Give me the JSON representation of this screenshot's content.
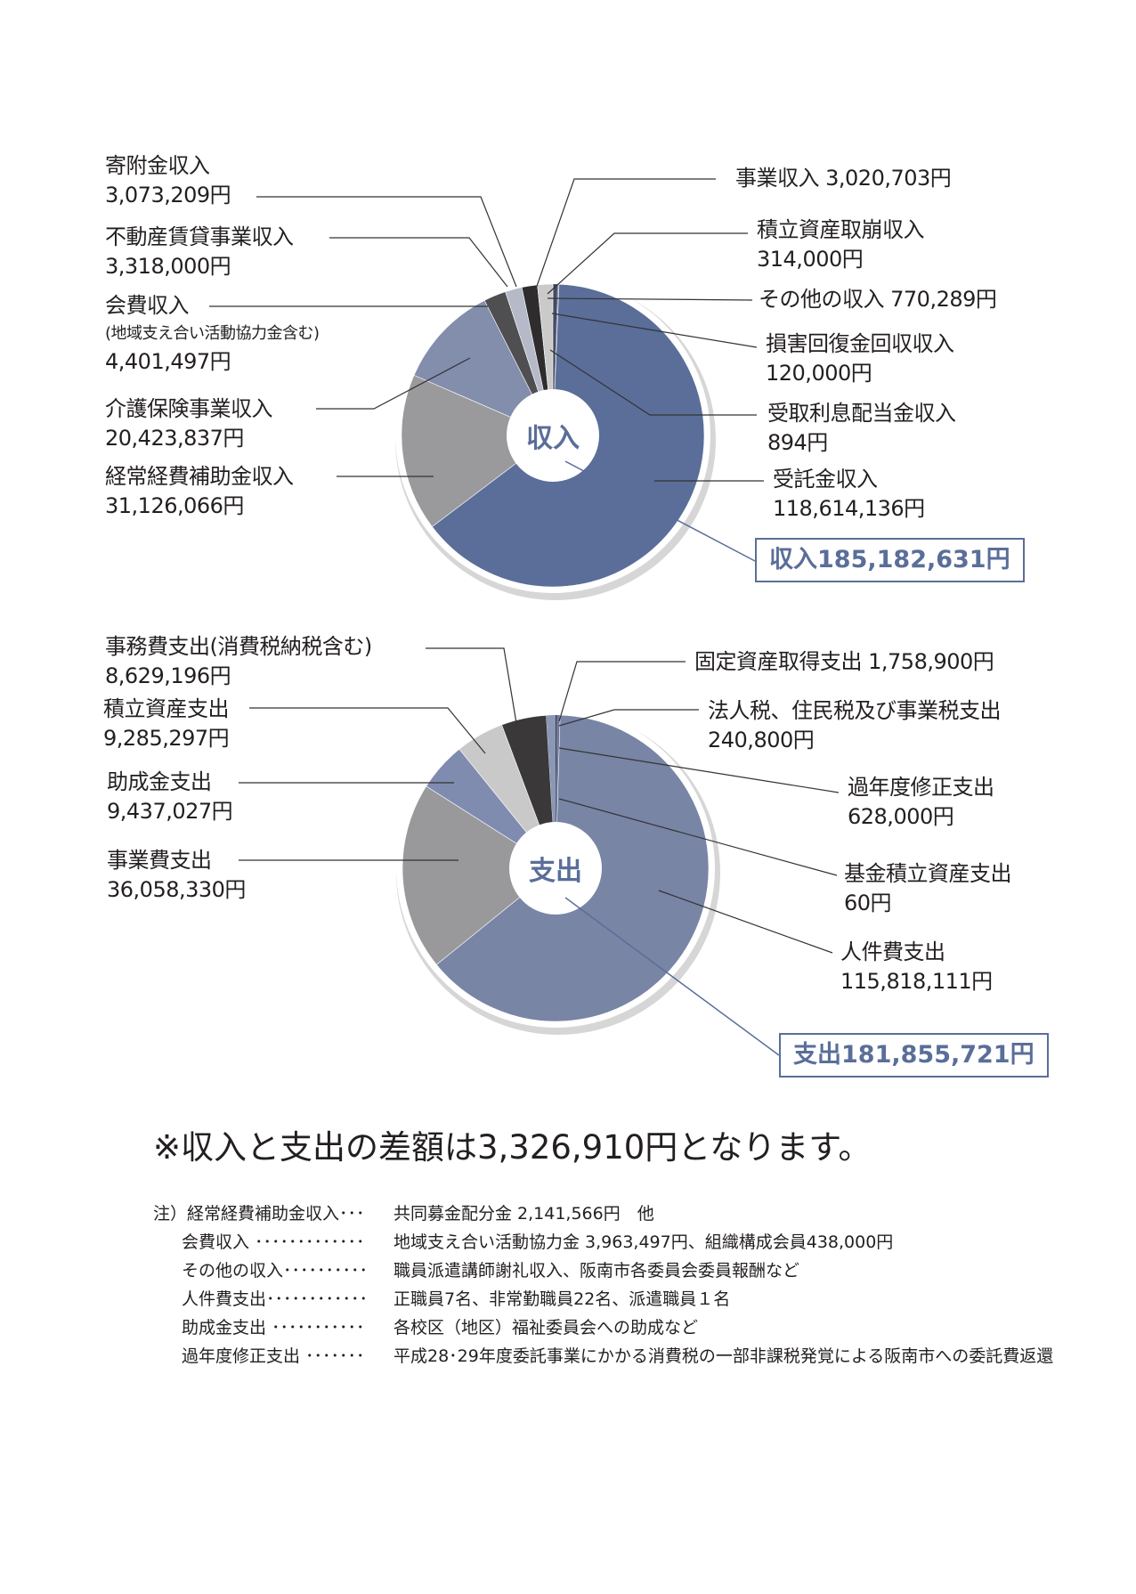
{
  "chart_data": [
    {
      "type": "pie",
      "title": "収入",
      "total_label": "収入185,182,631円",
      "slices": [
        {
          "label": "受取利息配当金収入",
          "value": 894,
          "value_label": "894円",
          "color": "#2f3447"
        },
        {
          "label": "損害回復金回収収入",
          "value": 120000,
          "value_label": "120,000円",
          "color": "#3a3f55"
        },
        {
          "label": "その他の収入",
          "value": 770289,
          "value_label": "770,289円",
          "color": "#454a60"
        },
        {
          "label": "積立資産取崩収入",
          "value": 314000,
          "value_label": "314,000円",
          "color": "#8b95b2"
        },
        {
          "label": "受託金収入",
          "value": 118614136,
          "value_label": "118,614,136円",
          "color": "#5a6e99"
        },
        {
          "label": "経常経費補助金収入",
          "value": 31126066,
          "value_label": "31,126,066円",
          "color": "#9a9a9c"
        },
        {
          "label": "介護保険事業収入",
          "value": 20423837,
          "value_label": "20,423,837円",
          "color": "#838ead"
        },
        {
          "label": "会費収入",
          "sub_label": "(地域支え合い活動協力金含む)",
          "value": 4401497,
          "value_label": "4,401,497円",
          "color": "#4f4f52"
        },
        {
          "label": "不動産賃貸事業収入",
          "value": 3318000,
          "value_label": "3,318,000円",
          "color": "#b5b9c8"
        },
        {
          "label": "寄附金収入",
          "value": 3073209,
          "value_label": "3,073,209円",
          "color": "#2e2c2d"
        },
        {
          "label": "事業収入",
          "value": 3020703,
          "value_label": "3,020,703円",
          "color": "#cacaca"
        }
      ]
    },
    {
      "type": "pie",
      "title": "支出",
      "total_label": "支出181,855,721円",
      "slices": [
        {
          "label": "法人税、住民税及び事業税支出",
          "value": 240800,
          "value_label": "240,800円",
          "color": "#3a3d4c"
        },
        {
          "label": "過年度修正支出",
          "value": 628000,
          "value_label": "628,000円",
          "color": "#6c789a"
        },
        {
          "label": "基金積立資産支出",
          "value": 60,
          "value_label": "60円",
          "color": "#333"
        },
        {
          "label": "人件費支出",
          "value": 115818111,
          "value_label": "115,818,111円",
          "color": "#7885a5"
        },
        {
          "label": "事業費支出",
          "value": 36058330,
          "value_label": "36,058,330円",
          "color": "#99999b"
        },
        {
          "label": "助成金支出",
          "value": 9437027,
          "value_label": "9,437,027円",
          "color": "#7f8cb0"
        },
        {
          "label": "積立資産支出",
          "value": 9285297,
          "value_label": "9,285,297円",
          "color": "#c9c9c9"
        },
        {
          "label": "事務費支出(消費税納税含む)",
          "value": 8629196,
          "value_label": "8,629,196円",
          "color": "#3a3838"
        },
        {
          "label": "固定資産取得支出",
          "value": 1758900,
          "value_label": "1,758,900円",
          "color": "#8b97b6"
        }
      ]
    }
  ],
  "difference_text": "※収入と支出の差額は3,326,910円となります。",
  "notes": [
    {
      "key": "注）経常経費補助金収入･･･",
      "value": "共同募金配分金 2,141,566円　他"
    },
    {
      "key": "会費収入 ･････････････",
      "value": "地域支え合い活動協力金 3,963,497円、組織構成会員438,000円"
    },
    {
      "key": "その他の収入･･････････",
      "value": "職員派遣講師謝礼収入、阪南市各委員会委員報酬など"
    },
    {
      "key": "人件費支出････････････",
      "value": "正職員7名、非常勤職員22名、派遣職員１名"
    },
    {
      "key": "助成金支出 ･･･････････",
      "value": "各校区（地区）福祉委員会への助成など"
    },
    {
      "key": "過年度修正支出 ･･･････",
      "value": "平成28･29年度委託事業にかかる消費税の一部非課税発覚による阪南市への委託費返還"
    }
  ]
}
